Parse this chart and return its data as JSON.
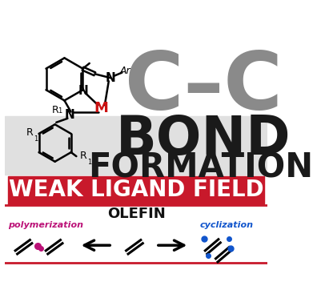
{
  "bg_color": "#ffffff",
  "gray_band_color": "#e0e0e0",
  "red_band_color": "#c8192b",
  "red_line_color": "#c8192b",
  "cc_text": "C–C",
  "cc_color": "#8a8a8a",
  "bond_text": "BOND",
  "bond_color": "#1a1a1a",
  "formation_text": "FORMATION",
  "formation_color": "#1a1a1a",
  "wlf_text": "WEAK LIGAND FIELD",
  "wlf_color": "#ffffff",
  "olefin_text": "OLEFIN",
  "olefin_color": "#111111",
  "poly_text": "polymerization",
  "poly_color": "#bb1177",
  "cycl_text": "cyclization",
  "cycl_color": "#1155cc",
  "ar_text": "Ar",
  "n_text": "N",
  "m_text": "M",
  "m_color": "#cc1111",
  "r1_text": "R",
  "black": "#111111",
  "fig_w": 3.96,
  "fig_h": 3.62,
  "dpi": 100
}
